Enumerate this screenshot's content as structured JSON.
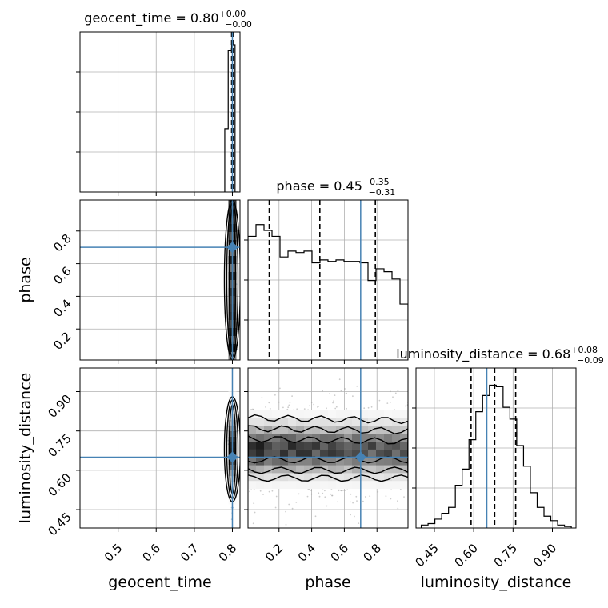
{
  "chart_data": {
    "type": "corner",
    "parameters": [
      {
        "name": "geocent_time",
        "title": "geocent_time = 0.80",
        "median": 0.8,
        "err_plus": "+0.00",
        "err_minus": "−0.00",
        "range": [
          0.4,
          0.82
        ],
        "ticks": [
          0.5,
          0.6,
          0.7,
          0.8
        ],
        "tick_labels": [
          "0.5",
          "0.6",
          "0.7",
          "0.8"
        ],
        "quantiles": [
          0.798,
          0.8,
          0.803
        ],
        "truth": 0.8
      },
      {
        "name": "phase",
        "title": "phase = 0.45",
        "median": 0.45,
        "err_plus": "+0.35",
        "err_minus": "−0.31",
        "range": [
          0.01,
          0.99
        ],
        "ticks": [
          0.2,
          0.4,
          0.6,
          0.8
        ],
        "tick_labels": [
          "0.2",
          "0.4",
          "0.6",
          "0.8"
        ],
        "quantiles": [
          0.14,
          0.45,
          0.79
        ],
        "truth": 0.7
      },
      {
        "name": "luminosity_distance",
        "title": "luminosity_distance = 0.68",
        "median": 0.68,
        "err_plus": "+0.08",
        "err_minus": "−0.09",
        "range": [
          0.38,
          0.99
        ],
        "ticks": [
          0.45,
          0.6,
          0.75,
          0.9
        ],
        "tick_labels": [
          "0.45",
          "0.60",
          "0.75",
          "0.90"
        ],
        "quantiles": [
          0.59,
          0.68,
          0.76
        ],
        "truth": 0.65
      }
    ],
    "histograms": {
      "geocent_time": {
        "edges": [
          0.78,
          0.789,
          0.798,
          0.807,
          0.816
        ],
        "counts": [
          0.43,
          0.96,
          1.0,
          0.0
        ]
      },
      "phase": {
        "edges": [
          0.01,
          0.059,
          0.108,
          0.157,
          0.206,
          0.255,
          0.304,
          0.353,
          0.402,
          0.451,
          0.5,
          0.549,
          0.598,
          0.647,
          0.696,
          0.745,
          0.794,
          0.843,
          0.892,
          0.941,
          0.99
        ],
        "counts": [
          0.84,
          0.92,
          0.88,
          0.84,
          0.7,
          0.74,
          0.73,
          0.74,
          0.66,
          0.68,
          0.67,
          0.68,
          0.67,
          0.67,
          0.66,
          0.54,
          0.62,
          0.6,
          0.55,
          0.38
        ]
      },
      "luminosity_distance": {
        "edges": [
          0.4,
          0.426,
          0.452,
          0.478,
          0.504,
          0.53,
          0.556,
          0.582,
          0.608,
          0.634,
          0.66,
          0.686,
          0.712,
          0.738,
          0.764,
          0.79,
          0.816,
          0.842,
          0.868,
          0.894,
          0.92,
          0.946,
          0.972
        ],
        "counts": [
          0.02,
          0.03,
          0.06,
          0.1,
          0.14,
          0.29,
          0.4,
          0.6,
          0.79,
          0.9,
          0.97,
          0.96,
          0.82,
          0.74,
          0.56,
          0.42,
          0.24,
          0.14,
          0.08,
          0.05,
          0.02,
          0.01
        ]
      }
    },
    "grid": true,
    "truth_color": "#4682b4",
    "line_color": "#000000"
  }
}
